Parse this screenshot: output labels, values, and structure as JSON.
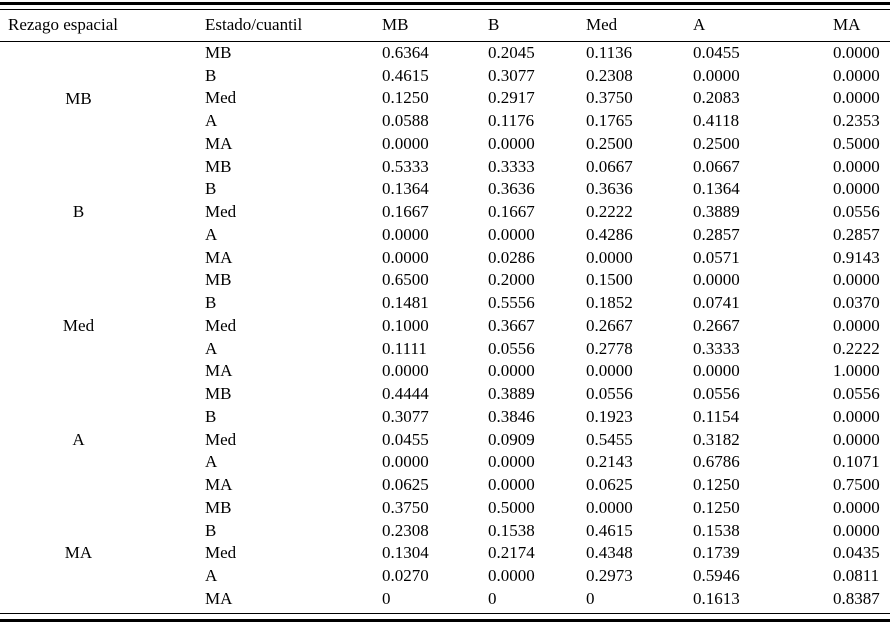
{
  "colors": {
    "text": "#000000",
    "background": "#ffffff",
    "rule": "#000000"
  },
  "table": {
    "headers": [
      "Rezago espacial",
      "Estado/cuantil",
      "MB",
      "B",
      "Med",
      "A",
      "MA"
    ],
    "groups": [
      {
        "label": "MB",
        "rows": [
          {
            "state": "MB",
            "values": [
              "0.6364",
              "0.2045",
              "0.1136",
              "0.0455",
              "0.0000"
            ]
          },
          {
            "state": "B",
            "values": [
              "0.4615",
              "0.3077",
              "0.2308",
              "0.0000",
              "0.0000"
            ]
          },
          {
            "state": "Med",
            "values": [
              "0.1250",
              "0.2917",
              "0.3750",
              "0.2083",
              "0.0000"
            ]
          },
          {
            "state": "A",
            "values": [
              "0.0588",
              "0.1176",
              "0.1765",
              "0.4118",
              "0.2353"
            ]
          },
          {
            "state": "MA",
            "values": [
              "0.0000",
              "0.0000",
              "0.2500",
              "0.2500",
              "0.5000"
            ]
          }
        ]
      },
      {
        "label": "B",
        "rows": [
          {
            "state": "MB",
            "values": [
              "0.5333",
              "0.3333",
              "0.0667",
              "0.0667",
              "0.0000"
            ]
          },
          {
            "state": "B",
            "values": [
              "0.1364",
              "0.3636",
              "0.3636",
              "0.1364",
              "0.0000"
            ]
          },
          {
            "state": "Med",
            "values": [
              "0.1667",
              "0.1667",
              "0.2222",
              "0.3889",
              "0.0556"
            ]
          },
          {
            "state": "A",
            "values": [
              "0.0000",
              "0.0000",
              "0.4286",
              "0.2857",
              "0.2857"
            ]
          },
          {
            "state": "MA",
            "values": [
              "0.0000",
              "0.0286",
              "0.0000",
              "0.0571",
              "0.9143"
            ]
          }
        ]
      },
      {
        "label": "Med",
        "rows": [
          {
            "state": "MB",
            "values": [
              "0.6500",
              "0.2000",
              "0.1500",
              "0.0000",
              "0.0000"
            ]
          },
          {
            "state": "B",
            "values": [
              "0.1481",
              "0.5556",
              "0.1852",
              "0.0741",
              "0.0370"
            ]
          },
          {
            "state": "Med",
            "values": [
              "0.1000",
              "0.3667",
              "0.2667",
              "0.2667",
              "0.0000"
            ]
          },
          {
            "state": "A",
            "values": [
              "0.1111",
              "0.0556",
              "0.2778",
              "0.3333",
              "0.2222"
            ]
          },
          {
            "state": "MA",
            "values": [
              "0.0000",
              "0.0000",
              "0.0000",
              "0.0000",
              "1.0000"
            ]
          }
        ]
      },
      {
        "label": "A",
        "rows": [
          {
            "state": "MB",
            "values": [
              "0.4444",
              "0.3889",
              "0.0556",
              "0.0556",
              "0.0556"
            ]
          },
          {
            "state": "B",
            "values": [
              "0.3077",
              "0.3846",
              "0.1923",
              "0.1154",
              "0.0000"
            ]
          },
          {
            "state": "Med",
            "values": [
              "0.0455",
              "0.0909",
              "0.5455",
              "0.3182",
              "0.0000"
            ]
          },
          {
            "state": "A",
            "values": [
              "0.0000",
              "0.0000",
              "0.2143",
              "0.6786",
              "0.1071"
            ]
          },
          {
            "state": "MA",
            "values": [
              "0.0625",
              "0.0000",
              "0.0625",
              "0.1250",
              "0.7500"
            ]
          }
        ]
      },
      {
        "label": "MA",
        "rows": [
          {
            "state": "MB",
            "values": [
              "0.3750",
              "0.5000",
              "0.0000",
              "0.1250",
              "0.0000"
            ]
          },
          {
            "state": "B",
            "values": [
              "0.2308",
              "0.1538",
              "0.4615",
              "0.1538",
              "0.0000"
            ]
          },
          {
            "state": "Med",
            "values": [
              "0.1304",
              "0.2174",
              "0.4348",
              "0.1739",
              "0.0435"
            ]
          },
          {
            "state": "A",
            "values": [
              "0.0270",
              "0.0000",
              "0.2973",
              "0.5946",
              "0.0811"
            ]
          },
          {
            "state": "MA",
            "values": [
              "0",
              "0",
              "0",
              "0.1613",
              "0.8387"
            ]
          }
        ]
      }
    ]
  }
}
